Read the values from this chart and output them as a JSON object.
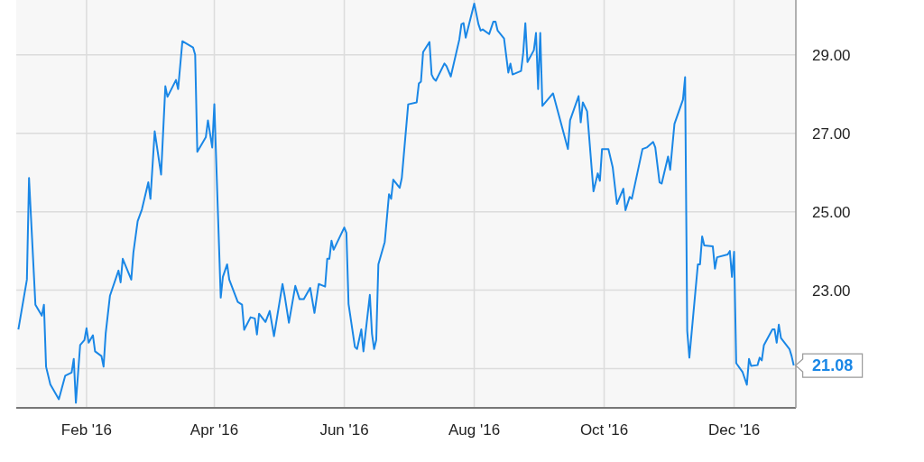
{
  "chart_data": {
    "type": "line",
    "color": "#1a87e6",
    "grid": true,
    "xlim": [
      "2015-12-30",
      "2016-12-30"
    ],
    "xticks": [
      {
        "value": "2016-02-01",
        "label": "Feb '16"
      },
      {
        "value": "2016-04-01",
        "label": "Apr '16"
      },
      {
        "value": "2016-06-01",
        "label": "Jun '16"
      },
      {
        "value": "2016-08-01",
        "label": "Aug '16"
      },
      {
        "value": "2016-10-01",
        "label": "Oct '16"
      },
      {
        "value": "2016-12-01",
        "label": "Dec '16"
      }
    ],
    "ylim": [
      20,
      30.4
    ],
    "yticks": [
      {
        "value": 21,
        "label": null
      },
      {
        "value": 23,
        "label": "23.00"
      },
      {
        "value": 25,
        "label": "25.00"
      },
      {
        "value": 27,
        "label": "27.00"
      },
      {
        "value": 29,
        "label": "29.00"
      }
    ],
    "annotations": [
      {
        "text": "21.08",
        "x": "2016-12-29",
        "y": 21.08
      }
    ],
    "x": [
      "2015-12-31",
      "2016-01-04",
      "2016-01-05",
      "2016-01-08",
      "2016-01-11",
      "2016-01-12",
      "2016-01-13",
      "2016-01-15",
      "2016-01-19",
      "2016-01-22",
      "2016-01-25",
      "2016-01-26",
      "2016-01-27",
      "2016-01-29",
      "2016-01-31",
      "2016-02-01",
      "2016-02-02",
      "2016-02-04",
      "2016-02-05",
      "2016-02-08",
      "2016-02-09",
      "2016-02-10",
      "2016-02-12",
      "2016-02-16",
      "2016-02-17",
      "2016-02-18",
      "2016-02-22",
      "2016-02-23",
      "2016-02-25",
      "2016-02-27",
      "2016-03-01",
      "2016-03-02",
      "2016-03-04",
      "2016-03-07",
      "2016-03-09",
      "2016-03-10",
      "2016-03-14",
      "2016-03-15",
      "2016-03-17",
      "2016-03-22",
      "2016-03-23",
      "2016-03-24",
      "2016-03-28",
      "2016-03-29",
      "2016-03-31",
      "2016-04-01",
      "2016-04-04",
      "2016-04-05",
      "2016-04-07",
      "2016-04-08",
      "2016-04-12",
      "2016-04-14",
      "2016-04-15",
      "2016-04-18",
      "2016-04-20",
      "2016-04-21",
      "2016-04-22",
      "2016-04-25",
      "2016-04-27",
      "2016-04-29",
      "2016-05-03",
      "2016-05-04",
      "2016-05-06",
      "2016-05-09",
      "2016-05-11",
      "2016-05-13",
      "2016-05-16",
      "2016-05-18",
      "2016-05-20",
      "2016-05-23",
      "2016-05-24",
      "2016-05-25",
      "2016-05-26",
      "2016-05-27",
      "2016-06-01",
      "2016-06-02",
      "2016-06-03",
      "2016-06-06",
      "2016-06-07",
      "2016-06-09",
      "2016-06-10",
      "2016-06-13",
      "2016-06-14",
      "2016-06-15",
      "2016-06-16",
      "2016-06-17",
      "2016-06-20",
      "2016-06-22",
      "2016-06-23",
      "2016-06-24",
      "2016-06-27",
      "2016-06-28",
      "2016-07-01",
      "2016-07-05",
      "2016-07-06",
      "2016-07-07",
      "2016-07-08",
      "2016-07-11",
      "2016-07-12",
      "2016-07-13",
      "2016-07-14",
      "2016-07-18",
      "2016-07-19",
      "2016-07-21",
      "2016-07-25",
      "2016-07-26",
      "2016-07-27",
      "2016-07-28",
      "2016-08-01",
      "2016-08-03",
      "2016-08-04",
      "2016-08-05",
      "2016-08-08",
      "2016-08-10",
      "2016-08-11",
      "2016-08-12",
      "2016-08-15",
      "2016-08-17",
      "2016-08-18",
      "2016-08-19",
      "2016-08-23",
      "2016-08-24",
      "2016-08-25",
      "2016-08-26",
      "2016-08-29",
      "2016-08-30",
      "2016-08-31",
      "2016-09-01",
      "2016-09-02",
      "2016-09-07",
      "2016-09-14",
      "2016-09-15",
      "2016-09-19",
      "2016-09-20",
      "2016-09-21",
      "2016-09-23",
      "2016-09-26",
      "2016-09-28",
      "2016-09-29",
      "2016-09-30",
      "2016-10-03",
      "2016-10-05",
      "2016-10-07",
      "2016-10-10",
      "2016-10-11",
      "2016-10-13",
      "2016-10-14",
      "2016-10-19",
      "2016-10-21",
      "2016-10-24",
      "2016-10-25",
      "2016-10-27",
      "2016-10-28",
      "2016-10-31",
      "2016-11-01",
      "2016-11-03",
      "2016-11-07",
      "2016-11-08",
      "2016-11-09",
      "2016-11-10",
      "2016-11-14",
      "2016-11-15",
      "2016-11-16",
      "2016-11-17",
      "2016-11-21",
      "2016-11-22",
      "2016-11-23",
      "2016-11-28",
      "2016-11-29",
      "2016-11-30",
      "2016-12-01",
      "2016-12-02",
      "2016-12-05",
      "2016-12-07",
      "2016-12-08",
      "2016-12-09",
      "2016-12-12",
      "2016-12-13",
      "2016-12-14",
      "2016-12-15",
      "2016-12-19",
      "2016-12-20",
      "2016-12-21",
      "2016-12-22",
      "2016-12-23",
      "2016-12-27",
      "2016-12-28",
      "2016-12-29"
    ],
    "values": [
      22.0,
      23.27,
      25.86,
      22.63,
      22.35,
      22.63,
      21.05,
      20.6,
      20.22,
      20.82,
      20.9,
      21.25,
      20.13,
      21.6,
      21.73,
      22.03,
      21.66,
      21.85,
      21.44,
      21.32,
      21.05,
      21.9,
      22.86,
      23.5,
      23.2,
      23.8,
      23.27,
      23.96,
      24.76,
      25.06,
      25.75,
      25.33,
      27.05,
      25.95,
      28.2,
      27.93,
      28.36,
      28.13,
      29.35,
      29.19,
      29.0,
      26.53,
      26.9,
      27.33,
      26.64,
      27.74,
      22.81,
      23.34,
      23.66,
      23.27,
      22.7,
      22.63,
      21.99,
      22.31,
      22.28,
      21.87,
      22.4,
      22.19,
      22.47,
      21.83,
      23.16,
      22.86,
      22.17,
      23.11,
      22.77,
      22.77,
      23.06,
      22.42,
      23.16,
      23.09,
      23.8,
      23.8,
      24.26,
      24.03,
      24.6,
      24.46,
      22.65,
      21.55,
      21.5,
      22.0,
      21.44,
      22.88,
      21.89,
      21.5,
      21.73,
      23.66,
      24.23,
      25.45,
      25.33,
      25.82,
      25.61,
      25.86,
      27.74,
      27.79,
      28.27,
      28.32,
      29.07,
      29.33,
      28.5,
      28.39,
      28.34,
      28.78,
      28.71,
      28.45,
      29.39,
      29.78,
      29.81,
      29.44,
      30.31,
      29.78,
      29.62,
      29.65,
      29.53,
      29.85,
      29.85,
      29.62,
      29.42,
      28.55,
      28.78,
      28.5,
      28.59,
      29.05,
      29.81,
      28.82,
      29.12,
      29.56,
      28.13,
      29.56,
      27.7,
      28.02,
      26.6,
      27.33,
      27.95,
      27.28,
      27.79,
      27.56,
      25.52,
      25.98,
      25.79,
      26.6,
      26.6,
      26.14,
      25.2,
      25.59,
      25.04,
      25.38,
      25.33,
      26.6,
      26.64,
      26.78,
      26.64,
      25.75,
      25.72,
      26.41,
      26.07,
      27.24,
      27.86,
      28.43,
      21.96,
      21.28,
      23.66,
      23.66,
      24.37,
      24.14,
      24.12,
      23.55,
      23.84,
      23.91,
      24.0,
      23.34,
      23.98,
      21.14,
      20.91,
      20.59,
      21.25,
      21.07,
      21.09,
      21.28,
      21.21,
      21.6,
      22.0,
      22.0,
      21.66,
      22.12,
      21.78,
      21.5,
      21.32,
      21.08
    ]
  }
}
